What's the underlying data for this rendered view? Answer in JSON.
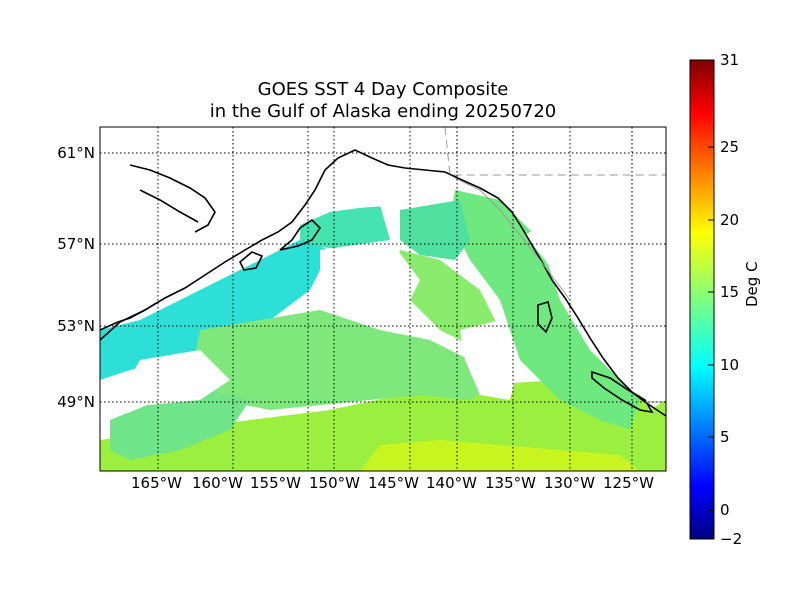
{
  "title": {
    "line1": "GOES SST 4 Day Composite",
    "line2": "in the Gulf of Alaska ending 20250720"
  },
  "map": {
    "lat_ticks": [
      {
        "value": 61,
        "label": "61°N"
      },
      {
        "value": 57,
        "label": "57°N"
      },
      {
        "value": 53,
        "label": "53°N"
      },
      {
        "value": 49,
        "label": "49°N"
      }
    ],
    "lon_ticks": [
      {
        "value": -165,
        "label": "165°W"
      },
      {
        "value": -160,
        "label": "160°W"
      },
      {
        "value": -155,
        "label": "155°W"
      },
      {
        "value": -150,
        "label": "150°W"
      },
      {
        "value": -145,
        "label": "145°W"
      },
      {
        "value": -140,
        "label": "140°W"
      },
      {
        "value": -135,
        "label": "135°W"
      },
      {
        "value": -130,
        "label": "130°W"
      },
      {
        "value": -125,
        "label": "125°W"
      }
    ],
    "grid": true,
    "colors": {
      "land_outline": "#000000",
      "border": "#999999"
    }
  },
  "colorbar": {
    "units": "Deg C",
    "min": -2,
    "max": 31,
    "ticks": [
      {
        "value": 31,
        "label": "31"
      },
      {
        "value": 25,
        "label": "25"
      },
      {
        "value": 20,
        "label": "20"
      },
      {
        "value": 15,
        "label": "15"
      },
      {
        "value": 10,
        "label": "10"
      },
      {
        "value": 5,
        "label": "5"
      },
      {
        "value": 0,
        "label": "0"
      },
      {
        "value": -2,
        "label": "−2"
      }
    ],
    "colormap": "jet"
  }
}
